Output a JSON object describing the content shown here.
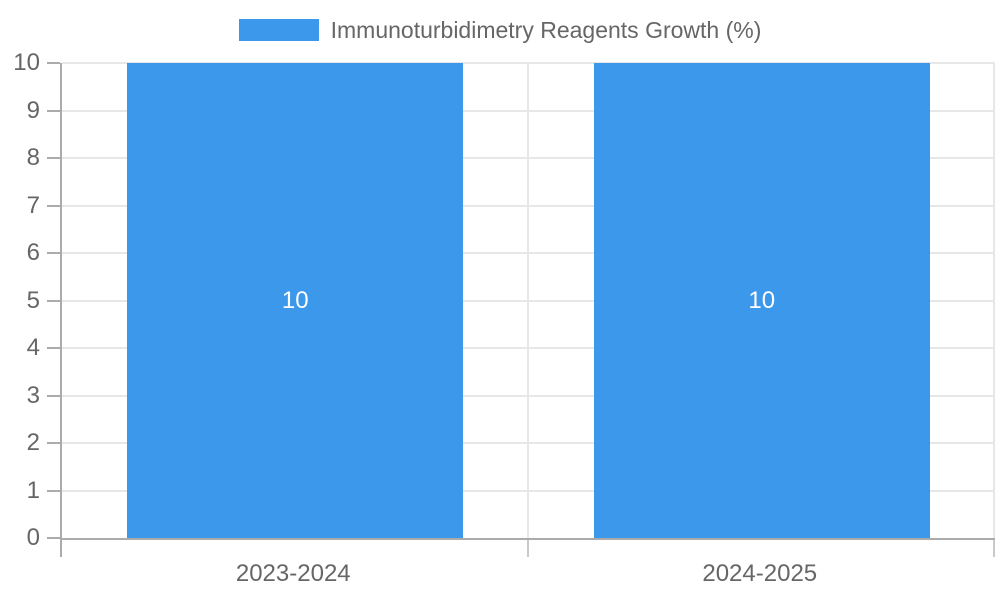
{
  "legend": {
    "label": "Immunoturbidimetry Reagents Growth (%)"
  },
  "colors": {
    "bar": "#3C98EB",
    "text": "#666666",
    "grid": "#E7E7E7",
    "axis": "#ABABAB",
    "bar_value_label": "#FFFFFF"
  },
  "chart_data": {
    "type": "bar",
    "title": "Immunoturbidimetry Reagents Growth (%)",
    "categories": [
      "2023-2024",
      "2024-2025"
    ],
    "values": [
      10,
      10
    ],
    "bar_value_labels": [
      "10",
      "10"
    ],
    "ytick_labels": [
      "0",
      "1",
      "2",
      "3",
      "4",
      "5",
      "6",
      "7",
      "8",
      "9",
      "10"
    ],
    "xlabel": "",
    "ylabel": "",
    "ylim": [
      0,
      10
    ],
    "ytick_step": 1,
    "grid": true,
    "legend_position": "top-center",
    "value_labels_inside_bars": true
  }
}
